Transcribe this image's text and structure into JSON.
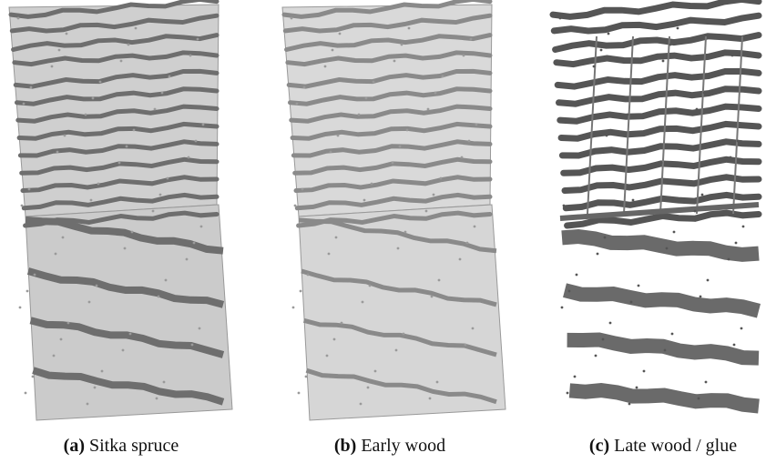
{
  "figure": {
    "panels": [
      {
        "label": "(a)",
        "caption": "Sitka spruce"
      },
      {
        "label": "(b)",
        "caption": "Early wood"
      },
      {
        "label": "(c)",
        "caption": "Late wood / glue"
      }
    ]
  }
}
